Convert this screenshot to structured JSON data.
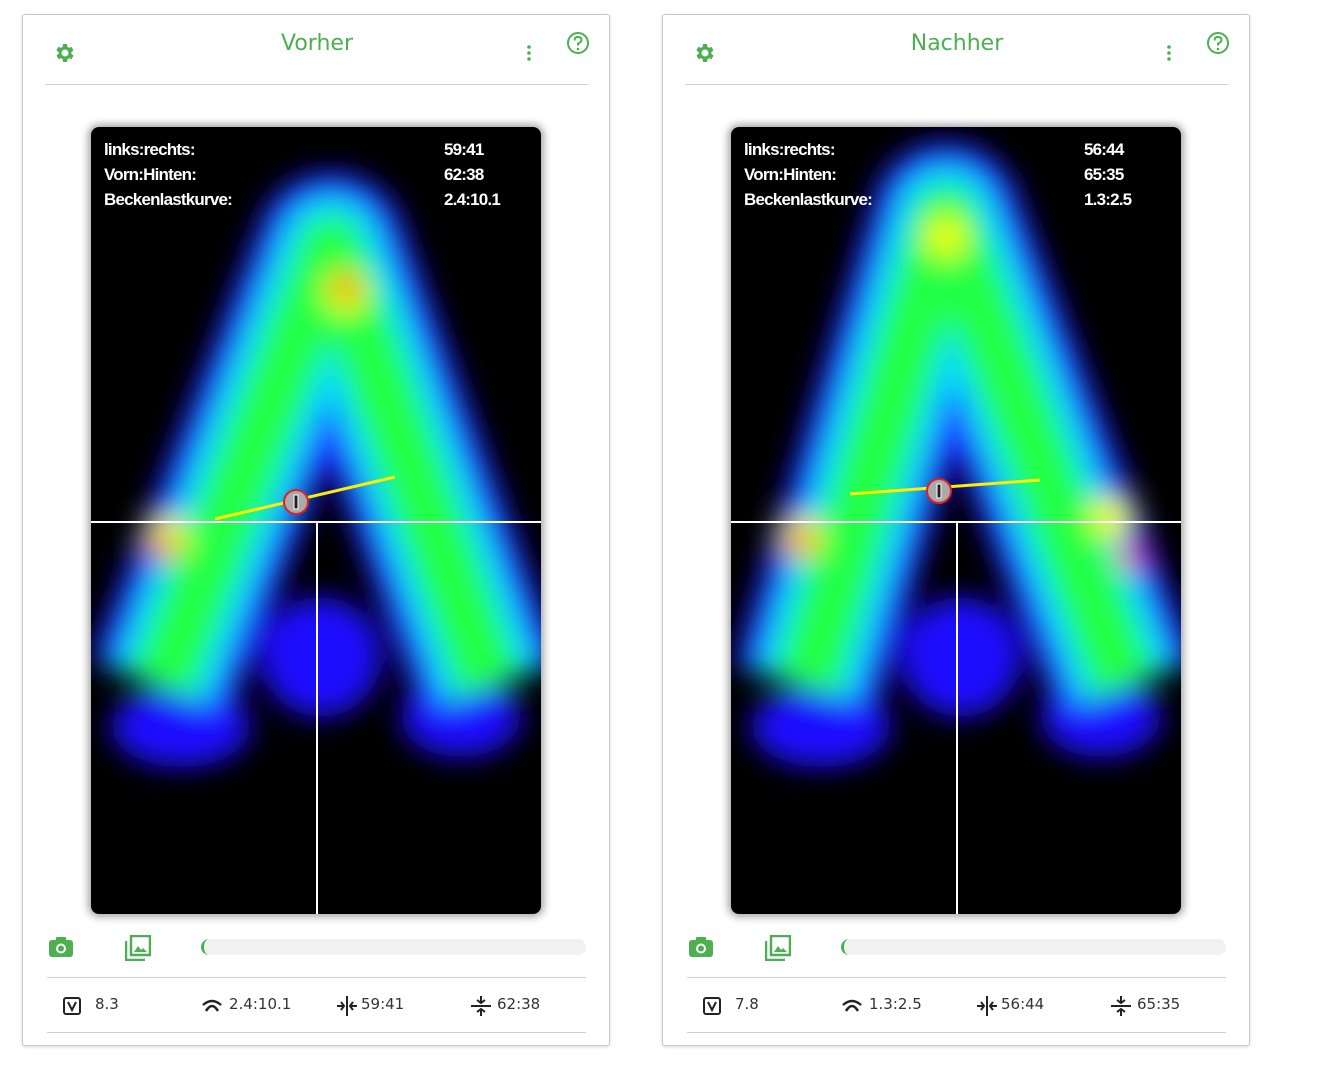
{
  "panels": [
    {
      "title": "Vorher",
      "overlay": {
        "labels": [
          "links:rechts:",
          "Vorn:Hinten:",
          "Beckenlastkurve:"
        ],
        "values": [
          "59:41",
          "62:38",
          "2.4:10.1"
        ]
      },
      "footer": [
        "8.3",
        "2.4:10.1",
        "59:41",
        "62:38"
      ]
    },
    {
      "title": "Nachher",
      "overlay": {
        "labels": [
          "links:rechts:",
          "Vorn:Hinten:",
          "Beckenlastkurve:"
        ],
        "values": [
          "56:44",
          "65:35",
          "1.3:2.5"
        ]
      },
      "footer": [
        "7.8",
        "1.3:2.5",
        "56:44",
        "65:35"
      ]
    }
  ]
}
